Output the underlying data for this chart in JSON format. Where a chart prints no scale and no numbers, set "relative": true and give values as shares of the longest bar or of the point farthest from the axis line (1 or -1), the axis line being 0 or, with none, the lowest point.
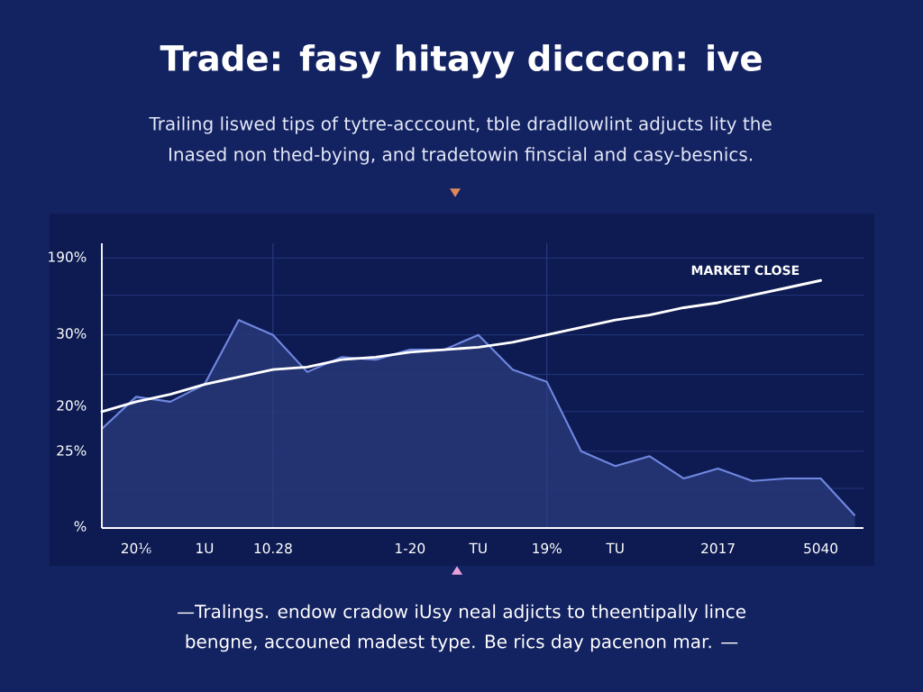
{
  "chart_data": {
    "type": "line",
    "relative": true,
    "title": "Trade: fasy hitayy dicccon: ive",
    "subtitle": "Trailing liswed tips of tytre-acccount, tble dradllowlint adjucts lity the Inased non thed-bying, and tradetowin finscial and casy-besnics.",
    "annotations": [
      "190%",
      "30%",
      "20%",
      "25%",
      "%",
      "—Tralings. endow cradow iUsy neal adjicts to theentipally lince bengne, accouned madest type. Be rics day pacenon mar. —"
    ],
    "categories": [
      null,
      "20⅙",
      null,
      "1U",
      null,
      "10.28",
      null,
      null,
      null,
      "1-20",
      null,
      "TU",
      null,
      "19%",
      null,
      "TU",
      null,
      null,
      "2017",
      null,
      null,
      "5040",
      null
    ],
    "ref_lines": [
      {
        "axis": "x",
        "value": "10.28",
        "color": "#2f4289"
      },
      {
        "axis": "x",
        "value": "19%",
        "color": "#2f4289"
      },
      {
        "axis": "y",
        "value": 0.16,
        "color": "#26397d"
      },
      {
        "axis": "y",
        "value": 0.31,
        "color": "#26397d"
      },
      {
        "axis": "y",
        "value": 0.47,
        "color": "#26397d"
      },
      {
        "axis": "y",
        "value": 0.62,
        "color": "#26397d"
      },
      {
        "axis": "y",
        "value": 0.78,
        "color": "#26397d"
      },
      {
        "axis": "y",
        "value": 0.94,
        "color": "#26397d"
      },
      {
        "axis": "y",
        "value": 1.09,
        "color": "#26397d"
      }
    ],
    "series": [
      {
        "type": "area",
        "color": "#6f87e0",
        "values": [
          0.4,
          0.53,
          0.51,
          0.58,
          0.84,
          0.78,
          0.63,
          0.69,
          0.68,
          0.72,
          0.72,
          0.78,
          0.64,
          0.59,
          0.31,
          0.25,
          0.29,
          0.2,
          0.24,
          0.19,
          0.2,
          0.2,
          0.05
        ]
      },
      {
        "name": "MARKET CLOSE",
        "color": "#ffffff",
        "values": [
          0.47,
          0.51,
          0.54,
          0.58,
          0.61,
          0.64,
          0.65,
          0.68,
          0.69,
          0.71,
          0.72,
          0.73,
          0.75,
          0.78,
          0.81,
          0.84,
          0.86,
          0.89,
          0.91,
          0.94,
          0.97,
          1,
          null
        ]
      }
    ]
  }
}
